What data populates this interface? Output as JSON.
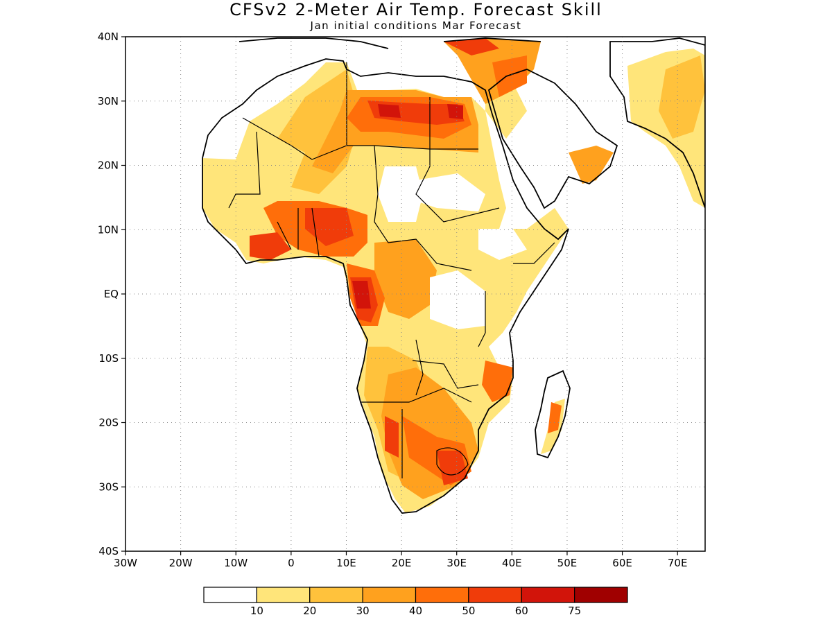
{
  "title": "CFSv2 2-Meter Air Temp. Forecast Skill",
  "subtitle": "Jan initial conditions  Mar Forecast",
  "map": {
    "lon_range": [
      -30,
      75
    ],
    "lat_range": [
      -40,
      40
    ],
    "grid": true,
    "lat_ticks": [
      {
        "value": 40,
        "label": "40N"
      },
      {
        "value": 30,
        "label": "30N"
      },
      {
        "value": 20,
        "label": "20N"
      },
      {
        "value": 10,
        "label": "10N"
      },
      {
        "value": 0,
        "label": "EQ"
      },
      {
        "value": -10,
        "label": "10S"
      },
      {
        "value": -20,
        "label": "20S"
      },
      {
        "value": -30,
        "label": "30S"
      },
      {
        "value": -40,
        "label": "40S"
      }
    ],
    "lon_ticks": [
      {
        "value": -30,
        "label": "30W"
      },
      {
        "value": -20,
        "label": "20W"
      },
      {
        "value": -10,
        "label": "10W"
      },
      {
        "value": 0,
        "label": "0"
      },
      {
        "value": 10,
        "label": "10E"
      },
      {
        "value": 20,
        "label": "20E"
      },
      {
        "value": 30,
        "label": "30E"
      },
      {
        "value": 40,
        "label": "40E"
      },
      {
        "value": 50,
        "label": "50E"
      },
      {
        "value": 60,
        "label": "60E"
      },
      {
        "value": 70,
        "label": "70E"
      }
    ]
  },
  "colorbar": {
    "labels": [
      "10",
      "20",
      "30",
      "40",
      "50",
      "60",
      "75"
    ],
    "colors": [
      "#ffffff",
      "#ffe57a",
      "#ffc23c",
      "#ffa11e",
      "#ff6e0a",
      "#f03c0a",
      "#d2140a",
      "#a00000"
    ]
  }
}
